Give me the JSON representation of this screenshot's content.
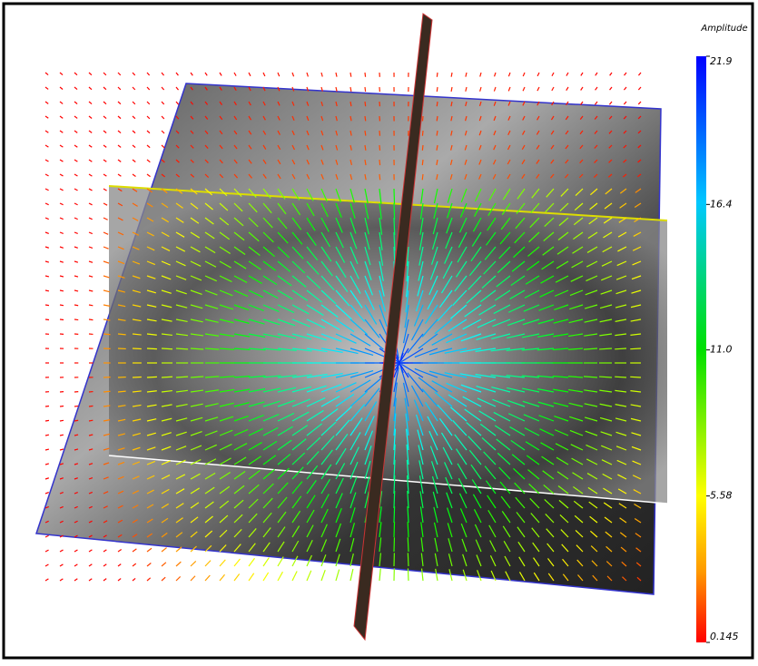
{
  "colorbar": {
    "title": "Amplitude",
    "ticks": [
      21.9,
      16.4,
      {
        "value": 11.0,
        "label": "11.0"
      },
      5.58,
      0.145
    ]
  }
}
